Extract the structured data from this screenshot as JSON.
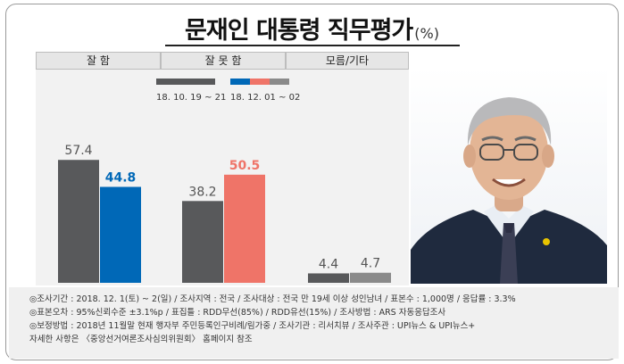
{
  "title": "문재인 대통령 직무평가",
  "title_unit": "(%)",
  "chart_data": {
    "type": "bar",
    "categories": [
      "잘 함",
      "잘 못 함",
      "모름/기타"
    ],
    "series": [
      {
        "name": "18. 10. 19 ~ 21",
        "values": [
          57.4,
          38.2,
          4.4
        ]
      },
      {
        "name": "18. 12. 01 ~ 02",
        "values": [
          44.8,
          50.5,
          4.7
        ]
      }
    ],
    "value_labels": [
      [
        "57.4",
        "44.8"
      ],
      [
        "38.2",
        "50.5"
      ],
      [
        "4.4",
        "4.7"
      ]
    ],
    "ylim": [
      0,
      60
    ],
    "grid": false,
    "legend_position": "top"
  },
  "colors": {
    "previous": "#58595b",
    "approve_current": "#0068b7",
    "disapprove_current": "#ef7468",
    "dontknow_current": "#8a8a8a",
    "approve_label": "#0068b7",
    "disapprove_label": "#ef7468",
    "grey_label": "#555555"
  },
  "notes": [
    "◎조사기간 : 2018. 12. 1(토) ~ 2(일) / 조사지역 : 전국 / 조사대상 : 전국 만 19세 이상 성인남녀 / 표본수 : 1,000명 / 응답률 : 3.3%",
    "◎표본오차 : 95%신뢰수준 ±3.1%p / 표집틀 : RDD무선(85%) / RDD유선(15%) / 조사방법 : ARS 자동응답조사",
    "◎보정방법 : 2018년 11월말 현재 행자부 주민등록인구비례/림가중 / 조사기관 : 리서치뷰 / 조사주관 : UPI뉴스 & UPI뉴스+",
    "자세한 사항은 〈중앙선거여론조사심의위원회〉 홈페이지 참조"
  ],
  "photo_icon": "person-portrait"
}
